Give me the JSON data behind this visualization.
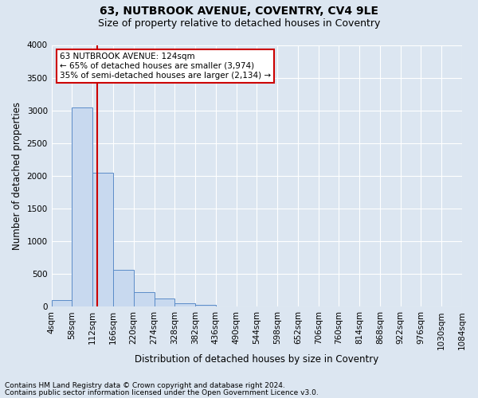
{
  "title_line1": "63, NUTBROOK AVENUE, COVENTRY, CV4 9LE",
  "title_line2": "Size of property relative to detached houses in Coventry",
  "xlabel": "Distribution of detached houses by size in Coventry",
  "ylabel": "Number of detached properties",
  "annotation_line1": "63 NUTBROOK AVENUE: 124sqm",
  "annotation_line2": "← 65% of detached houses are smaller (3,974)",
  "annotation_line3": "35% of semi-detached houses are larger (2,134) →",
  "property_size": 124,
  "bar_color": "#c8d9ef",
  "bar_edge_color": "#5b8cc8",
  "vline_color": "#cc0000",
  "background_color": "#dce6f1",
  "plot_bg_color": "#dce6f1",
  "footer_line1": "Contains HM Land Registry data © Crown copyright and database right 2024.",
  "footer_line2": "Contains public sector information licensed under the Open Government Licence v3.0.",
  "bin_edges": [
    4,
    58,
    112,
    166,
    220,
    274,
    328,
    382,
    436,
    490,
    544,
    598,
    652,
    706,
    760,
    814,
    868,
    922,
    976,
    1030,
    1084
  ],
  "bin_counts": [
    100,
    3050,
    2050,
    570,
    220,
    130,
    55,
    30,
    10,
    5,
    3,
    2,
    2,
    0,
    0,
    0,
    0,
    0,
    0,
    0
  ],
  "ylim": [
    0,
    4000
  ],
  "yticks": [
    0,
    500,
    1000,
    1500,
    2000,
    2500,
    3000,
    3500,
    4000
  ],
  "annotation_box_facecolor": "#ffffff",
  "annotation_box_edgecolor": "#cc0000",
  "title_fontsize": 10,
  "subtitle_fontsize": 9,
  "axis_label_fontsize": 8.5,
  "tick_fontsize": 7.5,
  "annotation_fontsize": 7.5,
  "footer_fontsize": 6.5
}
